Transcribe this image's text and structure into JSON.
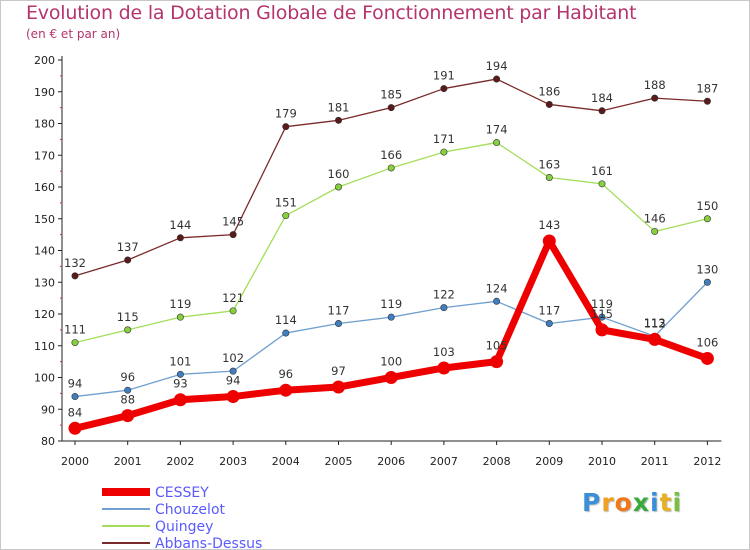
{
  "chart_data": {
    "type": "line",
    "title": "Evolution de la Dotation Globale de Fonctionnement par Habitant",
    "subtitle": "(en € et par an)",
    "x": [
      "2000",
      "2001",
      "2002",
      "2003",
      "2004",
      "2005",
      "2006",
      "2007",
      "2008",
      "2009",
      "2010",
      "2011",
      "2012"
    ],
    "yticks": [
      "80",
      "90",
      "100",
      "110",
      "120",
      "130",
      "140",
      "150",
      "160",
      "170",
      "180",
      "190",
      "200"
    ],
    "ylim": [
      80,
      200
    ],
    "grid": false,
    "legend_position": "bottom-left",
    "series": [
      {
        "name": "CESSEY",
        "values": [
          84,
          88,
          93,
          94,
          96,
          97,
          100,
          103,
          105,
          143,
          115,
          112,
          106
        ],
        "color": "#ee0000",
        "marker": "#ee0000",
        "thick": true,
        "legend_color": "#5a5aff"
      },
      {
        "name": "Chouzelot",
        "values": [
          94,
          96,
          101,
          102,
          114,
          117,
          119,
          122,
          124,
          117,
          119,
          113,
          130
        ],
        "color": "#6fa0cf",
        "marker": "#3f7fc0",
        "thick": false,
        "legend_color": "#5a5aff"
      },
      {
        "name": "Quingey",
        "values": [
          111,
          115,
          119,
          121,
          151,
          160,
          166,
          171,
          174,
          163,
          161,
          146,
          150
        ],
        "color": "#a4de5a",
        "marker": "#86d03e",
        "thick": false,
        "legend_color": "#5a5aff"
      },
      {
        "name": "Abbans-Dessus",
        "values": [
          132,
          137,
          144,
          145,
          179,
          181,
          185,
          191,
          194,
          186,
          184,
          188,
          187
        ],
        "color": "#7a2a2a",
        "marker": "#5a1a1a",
        "thick": false,
        "legend_color": "#5a5aff"
      }
    ]
  },
  "logo": {
    "letters": [
      {
        "ch": "P",
        "color": "#3a8fd8"
      },
      {
        "ch": "r",
        "color": "#f0a020"
      },
      {
        "ch": "o",
        "color": "#f07818"
      },
      {
        "ch": "x",
        "color": "#3aaa3a"
      },
      {
        "ch": "i",
        "color": "#3a8fd8"
      },
      {
        "ch": "t",
        "color": "#e8b020"
      },
      {
        "ch": "i",
        "color": "#7ac040"
      }
    ]
  }
}
